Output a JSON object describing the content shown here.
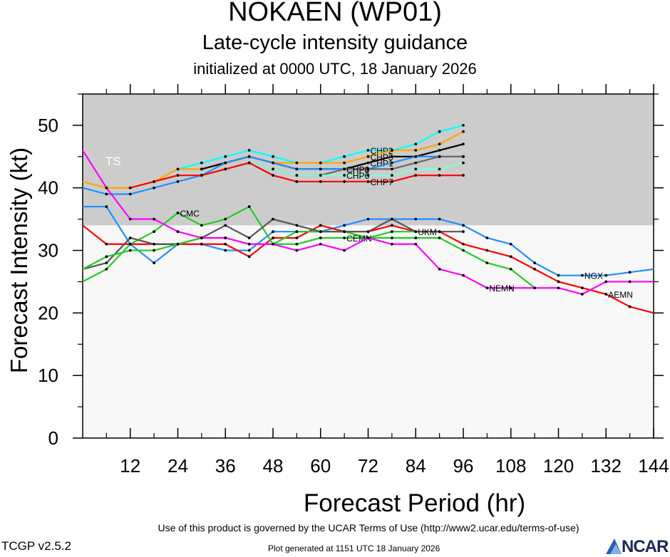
{
  "title": "NOKAEN (WP01)",
  "subtitle": "Late-cycle intensity guidance",
  "init_line": "initialized at 0000 UTC, 18 January 2026",
  "footer": {
    "terms": "Use of this product is governed by the UCAR Terms of Use (http://www2.ucar.edu/terms-of-use)",
    "version": "TCGP v2.5.2",
    "generated": "Plot generated at 1151 UTC   18 January 2026",
    "logo": "NCAR"
  },
  "chart_data": {
    "type": "line",
    "xlabel": "Forecast Period (hr)",
    "ylabel": "Forecast Intensity (kt)",
    "xlim": [
      0,
      144
    ],
    "ylim": [
      0,
      55
    ],
    "xticks": [
      12,
      24,
      36,
      48,
      60,
      72,
      84,
      96,
      108,
      120,
      132,
      144
    ],
    "yticks": [
      0,
      10,
      20,
      30,
      40,
      50
    ],
    "bands": [
      {
        "label": "TS",
        "from": 34,
        "to": 64,
        "color": "#cccccc"
      },
      {
        "label": "",
        "from": 0,
        "to": 34,
        "color": "#f8f8f8"
      }
    ],
    "series": [
      {
        "name": "CHP2",
        "color": "#00ffff",
        "label_at": 72,
        "x": [
          24,
          30,
          36,
          42,
          48,
          54,
          60,
          66,
          72,
          78,
          84,
          90,
          96
        ],
        "y": [
          43,
          44,
          45,
          46,
          45,
          44,
          44,
          45,
          46,
          46,
          47,
          49,
          50
        ]
      },
      {
        "name": "CHP3",
        "color": "#ffa500",
        "label_at": 72,
        "x": [
          0,
          6,
          12,
          18,
          24,
          30,
          36,
          42,
          48,
          54,
          60,
          66,
          72,
          78,
          84,
          90,
          96
        ],
        "y": [
          41,
          40,
          40,
          41,
          43,
          43,
          44,
          45,
          44,
          44,
          44,
          44,
          45,
          46,
          46,
          47,
          49
        ]
      },
      {
        "name": "CHP1",
        "color": "#000000",
        "label_at": 72,
        "x": [
          30,
          36,
          42,
          48,
          54,
          60,
          66,
          72,
          78,
          84,
          90,
          96
        ],
        "y": [
          43,
          44,
          45,
          44,
          43,
          43,
          43,
          44,
          45,
          45,
          46,
          47
        ]
      },
      {
        "name": "CHP4",
        "color": "#1e90ff",
        "label_at": 66,
        "x": [
          0,
          6,
          12,
          18,
          24,
          30,
          36,
          42,
          48,
          54,
          60,
          66,
          72,
          78,
          84,
          90,
          96
        ],
        "y": [
          40,
          39,
          39,
          40,
          41,
          42,
          44,
          45,
          44,
          43,
          43,
          43,
          43,
          44,
          45,
          45,
          45
        ]
      },
      {
        "name": "CHP5",
        "color": "#696969",
        "label_at": 66,
        "x": [
          30,
          36,
          42,
          48,
          54,
          60,
          66,
          72,
          78,
          84,
          90,
          96
        ],
        "y": [
          42,
          43,
          44,
          43,
          42,
          42,
          43,
          43,
          43,
          44,
          45,
          45
        ]
      },
      {
        "name": "CHP6",
        "color": "#7fffd4",
        "label_at": 66,
        "x": [
          30,
          36,
          42,
          48,
          54,
          60,
          66,
          72,
          78,
          84,
          90,
          96
        ],
        "y": [
          42,
          43,
          44,
          43,
          42,
          42,
          42,
          42,
          42,
          43,
          43,
          44
        ]
      },
      {
        "name": "CHP7",
        "color": "#ff0000",
        "label_at": 72,
        "x": [
          12,
          18,
          24,
          30,
          36,
          42,
          48,
          54,
          60,
          66,
          72,
          78,
          84,
          90,
          96
        ],
        "y": [
          40,
          41,
          42,
          42,
          43,
          44,
          42,
          41,
          41,
          41,
          41,
          41,
          42,
          42,
          42
        ]
      },
      {
        "name": "NGX",
        "color": "#1e90ff",
        "label_at": 126,
        "x": [
          0,
          6,
          12,
          18,
          24,
          30,
          36,
          42,
          48,
          54,
          60,
          66,
          72,
          78,
          84,
          90,
          96,
          102,
          108,
          114,
          120,
          126,
          132,
          138,
          144
        ],
        "y": [
          37,
          37,
          31,
          28,
          31,
          31,
          30,
          30,
          33,
          33,
          33,
          34,
          35,
          35,
          35,
          35,
          34,
          32,
          31,
          28,
          26,
          26,
          26,
          26.5,
          27
        ]
      },
      {
        "name": "AEMN",
        "color": "#ff0000",
        "label_at": 132,
        "x": [
          0,
          6,
          12,
          18,
          24,
          30,
          36,
          42,
          48,
          54,
          60,
          66,
          72,
          78,
          84,
          90,
          96,
          102,
          108,
          114,
          120,
          126,
          132,
          138,
          144
        ],
        "y": [
          34,
          31,
          31,
          31,
          31,
          31,
          31,
          29,
          32,
          32,
          34,
          33,
          33,
          34,
          33,
          33,
          31,
          30,
          29,
          27,
          25,
          24,
          23,
          21,
          20
        ]
      },
      {
        "name": "CMC",
        "color": "#22cc22",
        "label_at": 24,
        "x": [
          0,
          6,
          12,
          18,
          24,
          30,
          36,
          42,
          48,
          54,
          60,
          66,
          72,
          78,
          84
        ],
        "y": [
          25,
          27,
          31,
          33,
          36,
          34,
          35,
          37,
          31,
          33,
          33,
          33,
          32,
          33,
          33
        ]
      },
      {
        "name": "UKM",
        "color": "#555555",
        "label_at": 84,
        "x": [
          0,
          6,
          12,
          18,
          24,
          30,
          36,
          42,
          48,
          54,
          60,
          66,
          72,
          78,
          84,
          90,
          96
        ],
        "y": [
          27,
          28,
          32,
          31,
          31,
          32,
          34,
          32,
          35,
          34,
          33,
          33,
          33,
          35,
          33,
          33,
          33
        ]
      },
      {
        "name": "CEMN",
        "color": "#22cc22",
        "label_at": 66,
        "x": [
          0,
          6,
          12,
          18,
          24,
          30,
          36,
          42,
          48,
          54,
          60,
          66,
          72,
          78,
          84,
          90,
          96,
          102,
          108,
          114
        ],
        "y": [
          27,
          29,
          30,
          30,
          31,
          32,
          32,
          31,
          31,
          31,
          32,
          32,
          32,
          32,
          32,
          32,
          30,
          28,
          27,
          24
        ]
      },
      {
        "name": "NEMN",
        "color": "#ff00ff",
        "label_at": 102,
        "x": [
          0,
          6,
          12,
          18,
          24,
          30,
          36,
          42,
          48,
          54,
          60,
          66,
          72,
          78,
          84,
          90,
          96,
          102,
          108,
          114,
          120,
          126,
          132,
          138,
          144
        ],
        "y": [
          46,
          40,
          35,
          35,
          33,
          32,
          32,
          31,
          31,
          30,
          31,
          30,
          32,
          31,
          31,
          27,
          26,
          24,
          24,
          24,
          24,
          23,
          25,
          25,
          25
        ]
      }
    ]
  }
}
